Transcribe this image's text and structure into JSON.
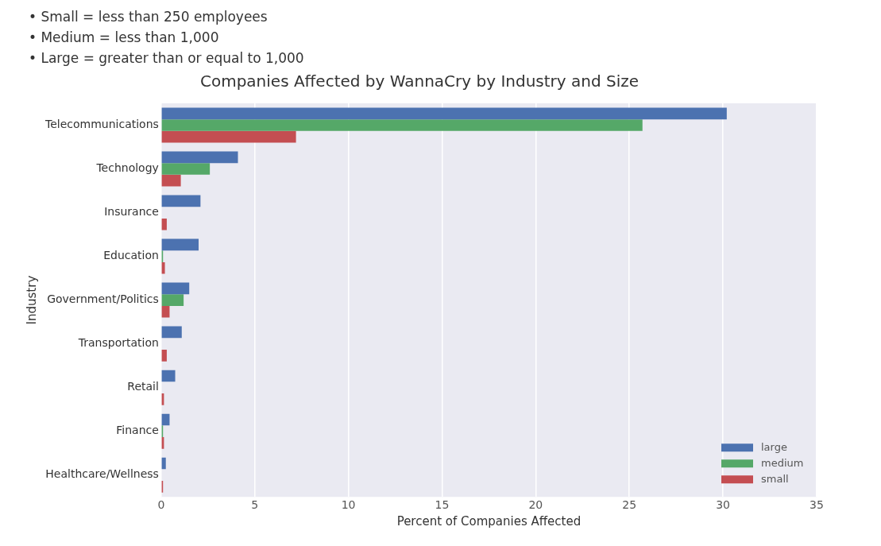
{
  "chart_data": {
    "type": "bar",
    "orientation": "horizontal",
    "title": "Companies Affected by WannaCry by Industry and Size",
    "annotations": [
      "• Small = less than 250 employees",
      "• Medium = less than 1,000",
      "• Large = greater than or equal to 1,000"
    ],
    "xlabel": "Percent of Companies Affected",
    "ylabel": "Industry",
    "categories": [
      "Telecommunications",
      "Technology",
      "Insurance",
      "Education",
      "Government/Politics",
      "Transportation",
      "Retail",
      "Finance",
      "Healthcare/Wellness"
    ],
    "series": [
      {
        "name": "large",
        "color": "#4c72b0",
        "values": [
          30.2,
          4.1,
          2.1,
          2.0,
          1.5,
          1.1,
          0.75,
          0.45,
          0.25
        ]
      },
      {
        "name": "medium",
        "color": "#55a868",
        "values": [
          25.7,
          2.6,
          0,
          0.1,
          1.2,
          0,
          0,
          0.1,
          0
        ]
      },
      {
        "name": "small",
        "color": "#c44e52",
        "values": [
          7.2,
          1.05,
          0.3,
          0.2,
          0.45,
          0.3,
          0.15,
          0.15,
          0.1
        ]
      }
    ],
    "xlim": [
      0,
      35
    ],
    "xticks": [
      0,
      5,
      10,
      15,
      20,
      25,
      30,
      35
    ],
    "grid": "x",
    "legend": "bottom right"
  }
}
